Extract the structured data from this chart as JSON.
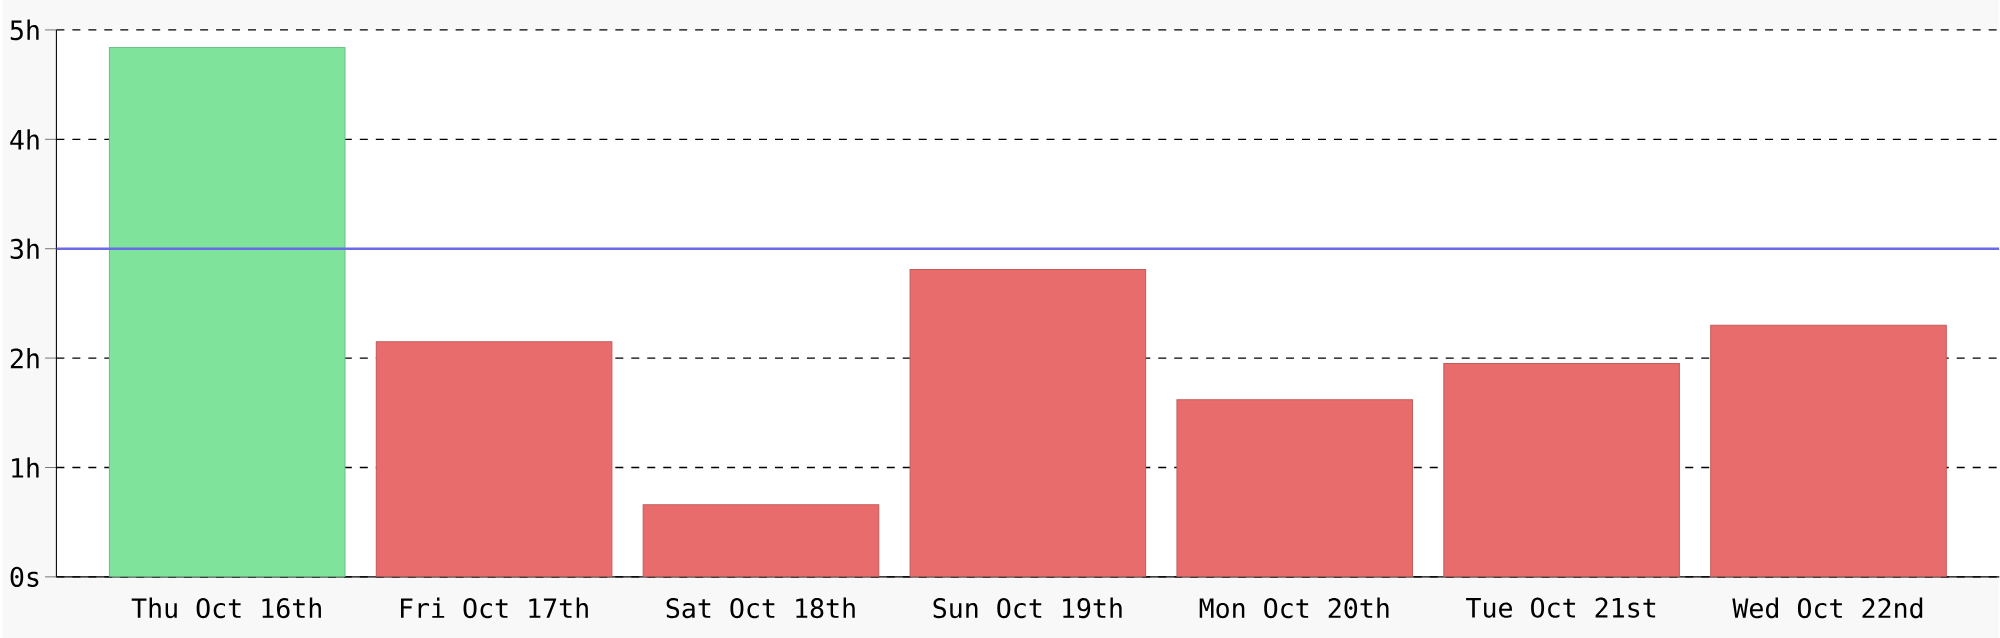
{
  "chart_data": {
    "type": "bar",
    "categories": [
      "Thu Oct 16th",
      "Fri Oct 17th",
      "Sat Oct 18th",
      "Sun Oct 19th",
      "Mon Oct 20th",
      "Tue Oct 21st",
      "Wed Oct 22nd"
    ],
    "values": [
      4.84,
      2.15,
      0.66,
      2.81,
      1.62,
      1.95,
      2.3
    ],
    "colors": [
      "#7fe39b",
      "#e86c6c",
      "#e86c6c",
      "#e86c6c",
      "#e86c6c",
      "#e86c6c",
      "#e86c6c"
    ],
    "ylim": [
      0,
      5
    ],
    "yticks": [
      {
        "value": 0,
        "label": "0s"
      },
      {
        "value": 1,
        "label": "1h"
      },
      {
        "value": 2,
        "label": "2h"
      },
      {
        "value": 3,
        "label": "3h"
      },
      {
        "value": 4,
        "label": "4h"
      },
      {
        "value": 5,
        "label": "5h"
      }
    ],
    "grid": "y",
    "ref_lines": [
      {
        "axis": "y",
        "value": 3,
        "color": "#6b6be6"
      }
    ]
  }
}
